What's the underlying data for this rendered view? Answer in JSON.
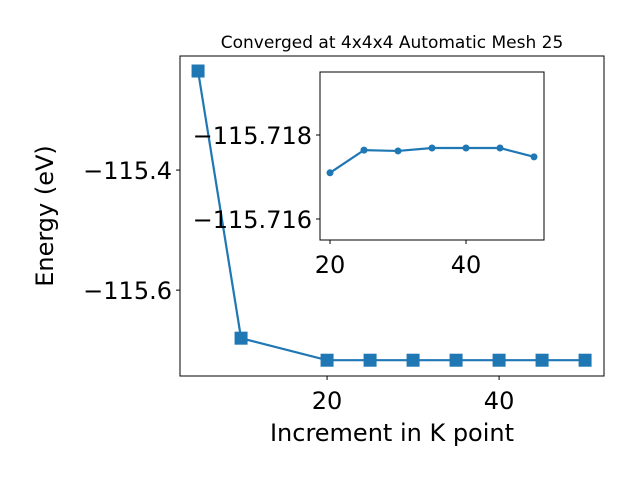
{
  "chart_data": [
    {
      "type": "line",
      "title": "Converged at 4x4x4 Automatic Mesh 25",
      "x_label": "Increment in K point",
      "y_label": "Energy (eV)",
      "x": [
        5,
        10,
        20,
        25,
        30,
        35,
        40,
        45,
        50
      ],
      "series": [
        {
          "color": "#1f77b4",
          "marker": "square",
          "values": [
            -115.235,
            -115.68,
            -115.7167,
            -115.7167,
            -115.7167,
            -115.7167,
            -115.7167,
            -115.7167,
            -115.7167
          ]
        }
      ],
      "xlim": [
        2.9,
        52.2
      ],
      "ylim": [
        -115.743,
        -115.21
      ],
      "xticks": [
        20,
        40
      ],
      "yticks": [
        {
          "value": -115.6,
          "label": "−115.6"
        },
        {
          "value": -115.4,
          "label": "−115.4"
        }
      ]
    },
    {
      "type": "line",
      "x": [
        20,
        25,
        30,
        35,
        40,
        45,
        50
      ],
      "series": [
        {
          "color": "#1f77b4",
          "marker": "circle",
          "values": [
            -115.7171,
            -115.71764,
            -115.71762,
            -115.71769,
            -115.71769,
            -115.71769,
            -115.71748
          ]
        }
      ],
      "xlim": [
        18.53,
        51.47
      ],
      "ylim": [
        -115.7155,
        -115.7195
      ],
      "xticks": [
        20,
        40
      ],
      "yticks": [
        {
          "value": -115.716,
          "label": "−115.716"
        },
        {
          "value": -115.718,
          "label": "−115.718"
        }
      ]
    }
  ]
}
